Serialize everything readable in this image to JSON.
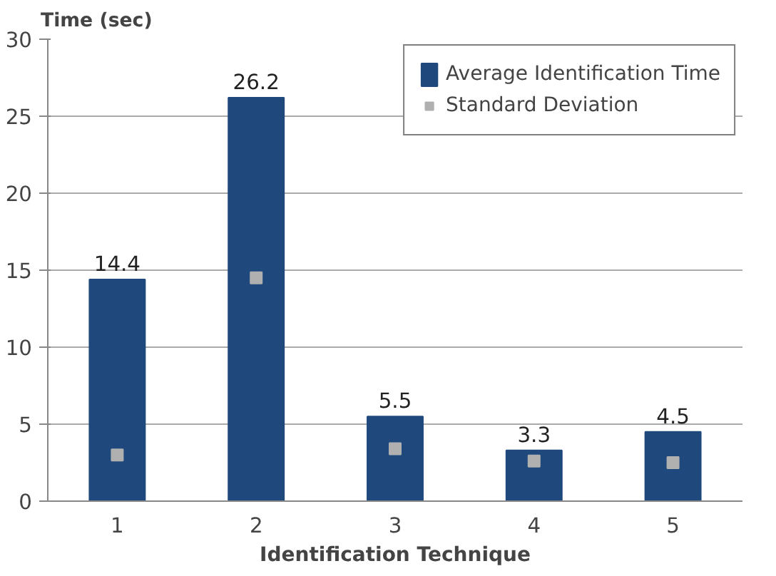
{
  "chart_data": {
    "type": "bar",
    "categories": [
      "1",
      "2",
      "3",
      "4",
      "5"
    ],
    "xlabel": "Identification Technique",
    "ylabel": "Time (sec)",
    "ylim": [
      0,
      30
    ],
    "yticks": [
      0,
      5,
      10,
      15,
      20,
      25,
      30
    ],
    "grid": "y",
    "legend": "top right",
    "series": [
      {
        "name": "Average Identification Time",
        "color": "#1f497d",
        "values": [
          14.4,
          26.2,
          5.5,
          3.3,
          4.5
        ],
        "value_labels": [
          "14.4",
          "26.2",
          "5.5",
          "3.3",
          "4.5"
        ]
      },
      {
        "name": "Standard Deviation",
        "type": "scatter",
        "marker": "square",
        "color": "#b0b0b0",
        "values": [
          3.0,
          14.5,
          3.4,
          2.6,
          2.5
        ]
      }
    ]
  }
}
